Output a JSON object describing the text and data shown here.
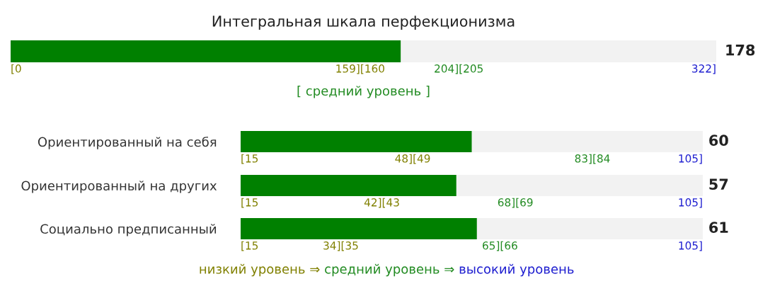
{
  "chart_data": [
    {
      "type": "bar",
      "orientation": "horizontal",
      "title": "Интегральная шкала перфекционизма",
      "categories": [
        null
      ],
      "values": [
        178
      ],
      "color": "#008000",
      "bands": [
        {
          "axis": "x",
          "from": 0,
          "to": 322,
          "color": "#f2f2f2"
        }
      ],
      "xlim": [
        0,
        322
      ],
      "xticks": [
        {
          "value": 0,
          "label": "[0"
        },
        {
          "value": 159.5,
          "label": "159][160"
        },
        {
          "value": 204.5,
          "label": "204][205"
        },
        {
          "value": 322,
          "label": "322]"
        }
      ],
      "annotations": [
        "178",
        "[ средний уровень ]"
      ]
    },
    {
      "type": "bar",
      "orientation": "horizontal",
      "categories": [
        "Ориентированный на себя"
      ],
      "values": [
        60
      ],
      "annotations": [
        "60"
      ],
      "color": "#008000",
      "bands": [
        {
          "axis": "x",
          "from": 15,
          "to": 105,
          "color": "#f2f2f2"
        }
      ],
      "xlim": [
        15,
        105
      ],
      "xticks": [
        {
          "value": 15,
          "label": "[15"
        },
        {
          "value": 48.5,
          "label": "48][49"
        },
        {
          "value": 83.5,
          "label": "83][84"
        },
        {
          "value": 105,
          "label": "105]"
        }
      ]
    },
    {
      "type": "bar",
      "orientation": "horizontal",
      "categories": [
        "Ориентированный на других"
      ],
      "values": [
        57
      ],
      "annotations": [
        "57"
      ],
      "color": "#008000",
      "bands": [
        {
          "axis": "x",
          "from": 15,
          "to": 105,
          "color": "#f2f2f2"
        }
      ],
      "xlim": [
        15,
        105
      ],
      "xticks": [
        {
          "value": 15,
          "label": "[15"
        },
        {
          "value": 42.5,
          "label": "42][43"
        },
        {
          "value": 68.5,
          "label": "68][69"
        },
        {
          "value": 105,
          "label": "105]"
        }
      ]
    },
    {
      "type": "bar",
      "orientation": "horizontal",
      "categories": [
        "Социально предписанный"
      ],
      "values": [
        61
      ],
      "color": "#008000",
      "bands": [
        {
          "axis": "x",
          "from": 15,
          "to": 105,
          "color": "#f2f2f2"
        }
      ],
      "xlim": [
        15,
        105
      ],
      "xticks": [
        {
          "value": 15,
          "label": "[15"
        },
        {
          "value": 34.5,
          "label": "34][35"
        },
        {
          "value": 65.5,
          "label": "65][66"
        },
        {
          "value": 105,
          "label": "105]"
        }
      ],
      "annotations": [
        "61",
        "низкий уровень ⇒",
        "средний уровень ⇒",
        "высокий уровень"
      ]
    }
  ]
}
